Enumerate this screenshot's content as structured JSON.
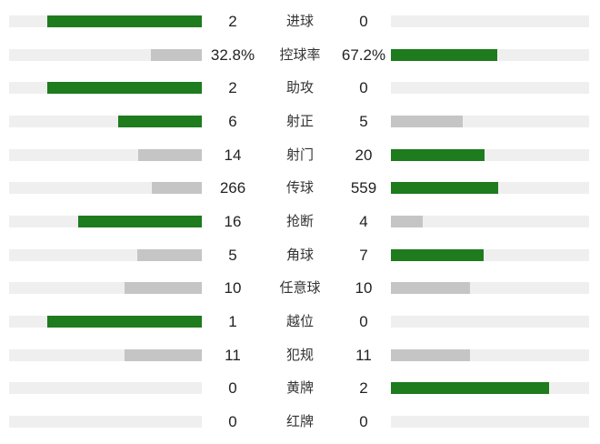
{
  "colors": {
    "green": "#1e7b1e",
    "gray": "#c5c5c5",
    "track": "#efefef",
    "none": "transparent",
    "value_text": "#222222",
    "label_text": "#333333"
  },
  "chart_data": {
    "type": "bar",
    "layout": "horizontal-comparison",
    "description": "Football match statistics comparison, left team vs right team, bars scaled to share of total (max 80% of track)",
    "legend_position": "none",
    "grid": false,
    "rows": [
      {
        "label": "进球",
        "left": "2",
        "right": "0",
        "left_pct": 80,
        "right_pct": 0,
        "left_color": "green",
        "right_color": "none"
      },
      {
        "label": "控球率",
        "left": "32.8%",
        "right": "67.2%",
        "left_pct": 26.2,
        "right_pct": 53.8,
        "left_color": "gray",
        "right_color": "green"
      },
      {
        "label": "助攻",
        "left": "2",
        "right": "0",
        "left_pct": 80,
        "right_pct": 0,
        "left_color": "green",
        "right_color": "none"
      },
      {
        "label": "射正",
        "left": "6",
        "right": "5",
        "left_pct": 43.6,
        "right_pct": 36.4,
        "left_color": "green",
        "right_color": "gray"
      },
      {
        "label": "射门",
        "left": "14",
        "right": "20",
        "left_pct": 32.9,
        "right_pct": 47.1,
        "left_color": "gray",
        "right_color": "green"
      },
      {
        "label": "传球",
        "left": "266",
        "right": "559",
        "left_pct": 25.8,
        "right_pct": 54.2,
        "left_color": "gray",
        "right_color": "green"
      },
      {
        "label": "抢断",
        "left": "16",
        "right": "4",
        "left_pct": 64,
        "right_pct": 16,
        "left_color": "green",
        "right_color": "gray"
      },
      {
        "label": "角球",
        "left": "5",
        "right": "7",
        "left_pct": 33.3,
        "right_pct": 46.7,
        "left_color": "gray",
        "right_color": "green"
      },
      {
        "label": "任意球",
        "left": "10",
        "right": "10",
        "left_pct": 40,
        "right_pct": 40,
        "left_color": "gray",
        "right_color": "gray"
      },
      {
        "label": "越位",
        "left": "1",
        "right": "0",
        "left_pct": 80,
        "right_pct": 0,
        "left_color": "green",
        "right_color": "none"
      },
      {
        "label": "犯规",
        "left": "11",
        "right": "11",
        "left_pct": 40,
        "right_pct": 40,
        "left_color": "gray",
        "right_color": "gray"
      },
      {
        "label": "黄牌",
        "left": "0",
        "right": "2",
        "left_pct": 0,
        "right_pct": 80,
        "left_color": "none",
        "right_color": "green"
      },
      {
        "label": "红牌",
        "left": "0",
        "right": "0",
        "left_pct": 0,
        "right_pct": 0,
        "left_color": "none",
        "right_color": "none"
      }
    ]
  }
}
